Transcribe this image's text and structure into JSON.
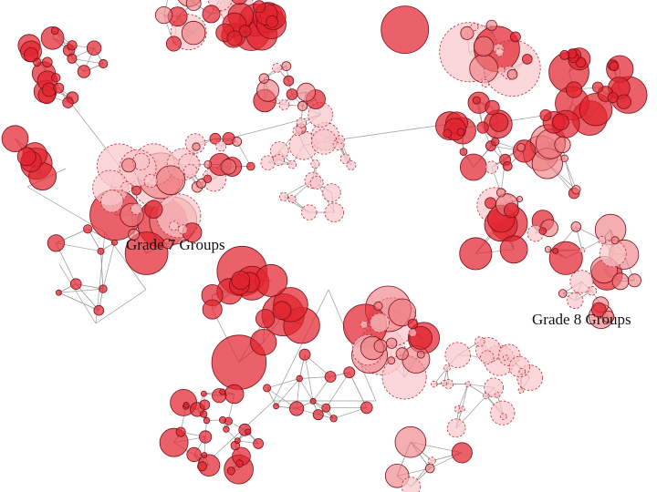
{
  "labels": {
    "grade7": "Grade 7 Groups",
    "grade8": "Grade 8 Groups"
  },
  "colors": {
    "node_dark": "#e2242f",
    "node_mid": "#ee7a80",
    "node_light": "#f9c6c9",
    "edge": "#9a9a9a",
    "stroke": "#7a1018"
  }
}
